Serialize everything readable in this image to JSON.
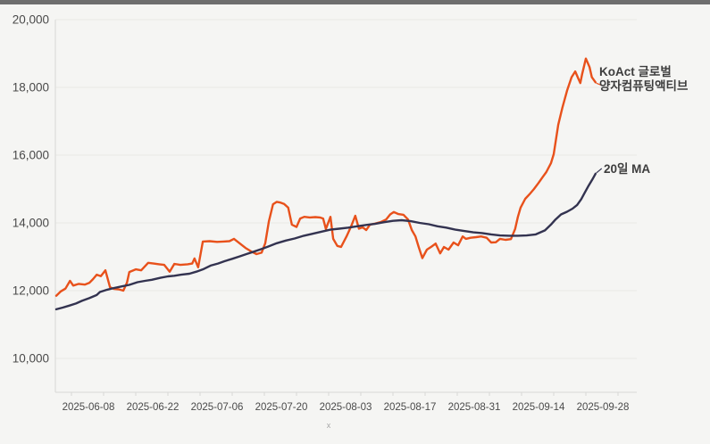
{
  "page": {
    "background_color": "#f5f5f3",
    "topbar_color": "#6e6e6e"
  },
  "chart_data": {
    "type": "line",
    "title": "",
    "xlabel": "x",
    "ylabel": "",
    "legend_position": "right-of-line-endpoints",
    "grid": "horizontal",
    "x_axis": {
      "tick_labels": [
        "2025-06-08",
        "2025-06-22",
        "2025-07-06",
        "2025-07-20",
        "2025-08-03",
        "2025-08-17",
        "2025-08-31",
        "2025-09-14",
        "2025-09-28"
      ],
      "tick_day_offsets": [
        7,
        21,
        35,
        49,
        63,
        77,
        91,
        105,
        119
      ],
      "minor_tick_every_days": 7,
      "start_date": "2025-06-01"
    },
    "y_axis": {
      "tick_values": [
        10000,
        12000,
        14000,
        16000,
        18000,
        20000
      ],
      "tick_labels": [
        "10,000",
        "12,000",
        "14,000",
        "16,000",
        "18,000",
        "20,000"
      ],
      "range": [
        9000,
        20500
      ]
    },
    "series": [
      {
        "name": "KoAct 글로벌 양자컴퓨팅액티브",
        "label_lines": [
          "KoAct 글로벌",
          "양자컴퓨팅액티브"
        ],
        "color": "#e8511b",
        "line_width": 2.4,
        "points": [
          [
            0,
            11850
          ],
          [
            1,
            11980
          ],
          [
            2,
            12060
          ],
          [
            3,
            12290
          ],
          [
            3.7,
            12150
          ],
          [
            4.9,
            12200
          ],
          [
            6.2,
            12180
          ],
          [
            7.2,
            12230
          ],
          [
            8,
            12340
          ],
          [
            8.8,
            12470
          ],
          [
            9.7,
            12430
          ],
          [
            10.7,
            12600
          ],
          [
            11.7,
            12100
          ],
          [
            12.6,
            12050
          ],
          [
            13.6,
            12040
          ],
          [
            14.6,
            12000
          ],
          [
            15.4,
            12240
          ],
          [
            15.9,
            12550
          ],
          [
            17.3,
            12630
          ],
          [
            18.5,
            12600
          ],
          [
            20,
            12820
          ],
          [
            21.2,
            12800
          ],
          [
            22.4,
            12780
          ],
          [
            23.5,
            12760
          ],
          [
            24.7,
            12560
          ],
          [
            25.7,
            12790
          ],
          [
            27,
            12760
          ],
          [
            28.6,
            12780
          ],
          [
            29.6,
            12800
          ],
          [
            30.1,
            12950
          ],
          [
            30.9,
            12690
          ],
          [
            31.9,
            13450
          ],
          [
            33.4,
            13460
          ],
          [
            35,
            13440
          ],
          [
            36.4,
            13450
          ],
          [
            37.7,
            13460
          ],
          [
            38.7,
            13530
          ],
          [
            39.9,
            13400
          ],
          [
            41.2,
            13260
          ],
          [
            42.4,
            13160
          ],
          [
            43.6,
            13080
          ],
          [
            44.7,
            13120
          ],
          [
            45.5,
            13400
          ],
          [
            46.3,
            14050
          ],
          [
            47.2,
            14550
          ],
          [
            48,
            14620
          ],
          [
            48.8,
            14600
          ],
          [
            49.6,
            14560
          ],
          [
            50.5,
            14450
          ],
          [
            51.3,
            13950
          ],
          [
            52.3,
            13880
          ],
          [
            53.1,
            14130
          ],
          [
            54,
            14180
          ],
          [
            55.2,
            14160
          ],
          [
            56.4,
            14170
          ],
          [
            57.4,
            14160
          ],
          [
            58.1,
            14130
          ],
          [
            58.7,
            13820
          ],
          [
            59.7,
            14180
          ],
          [
            60.3,
            13530
          ],
          [
            61.2,
            13320
          ],
          [
            62,
            13290
          ],
          [
            63.2,
            13600
          ],
          [
            64.2,
            13900
          ],
          [
            65.1,
            14210
          ],
          [
            65.9,
            13830
          ],
          [
            66.7,
            13870
          ],
          [
            67.5,
            13790
          ],
          [
            68.3,
            13950
          ],
          [
            69.4,
            13980
          ],
          [
            70.6,
            14020
          ],
          [
            71.8,
            14100
          ],
          [
            72.7,
            14250
          ],
          [
            73.5,
            14320
          ],
          [
            74.5,
            14260
          ],
          [
            75.6,
            14240
          ],
          [
            76.6,
            14100
          ],
          [
            77.4,
            13790
          ],
          [
            78.2,
            13600
          ],
          [
            78.9,
            13290
          ],
          [
            79.7,
            12960
          ],
          [
            80.7,
            13210
          ],
          [
            81.7,
            13300
          ],
          [
            82.6,
            13390
          ],
          [
            83.6,
            13100
          ],
          [
            84.4,
            13290
          ],
          [
            85.4,
            13210
          ],
          [
            86.5,
            13420
          ],
          [
            87.5,
            13340
          ],
          [
            88.5,
            13600
          ],
          [
            89.2,
            13530
          ],
          [
            90.2,
            13560
          ],
          [
            91.4,
            13580
          ],
          [
            92.5,
            13600
          ],
          [
            93.7,
            13560
          ],
          [
            94.7,
            13420
          ],
          [
            95.7,
            13430
          ],
          [
            96.6,
            13530
          ],
          [
            97.8,
            13500
          ],
          [
            99,
            13520
          ],
          [
            99.9,
            13820
          ],
          [
            100.5,
            14180
          ],
          [
            101.1,
            14450
          ],
          [
            102.1,
            14710
          ],
          [
            103,
            14840
          ],
          [
            104,
            15000
          ],
          [
            105,
            15180
          ],
          [
            106,
            15370
          ],
          [
            106.7,
            15500
          ],
          [
            107.7,
            15760
          ],
          [
            108.3,
            16030
          ],
          [
            109.3,
            16900
          ],
          [
            110.2,
            17400
          ],
          [
            111.2,
            17900
          ],
          [
            112.2,
            18300
          ],
          [
            113,
            18470
          ],
          [
            113.7,
            18250
          ],
          [
            114.1,
            18130
          ],
          [
            114.5,
            18400
          ],
          [
            115.3,
            18850
          ],
          [
            116.1,
            18600
          ],
          [
            116.6,
            18300
          ],
          [
            117.4,
            18150
          ]
        ]
      },
      {
        "name": "20일 MA",
        "label_lines": [
          "20일 MA"
        ],
        "color": "#333350",
        "line_width": 2.4,
        "points": [
          [
            0,
            11450
          ],
          [
            1.4,
            11500
          ],
          [
            2.9,
            11560
          ],
          [
            4.3,
            11620
          ],
          [
            5.6,
            11700
          ],
          [
            7.2,
            11780
          ],
          [
            8.8,
            11870
          ],
          [
            9.5,
            11960
          ],
          [
            11.1,
            12030
          ],
          [
            12.6,
            12080
          ],
          [
            14.4,
            12130
          ],
          [
            15.9,
            12170
          ],
          [
            17.7,
            12250
          ],
          [
            19.3,
            12290
          ],
          [
            20.8,
            12320
          ],
          [
            22.7,
            12380
          ],
          [
            24.3,
            12420
          ],
          [
            25.7,
            12440
          ],
          [
            27.2,
            12470
          ],
          [
            29,
            12500
          ],
          [
            30.5,
            12560
          ],
          [
            32.1,
            12640
          ],
          [
            33.6,
            12740
          ],
          [
            35.2,
            12800
          ],
          [
            36.7,
            12870
          ],
          [
            38.3,
            12940
          ],
          [
            39.9,
            13010
          ],
          [
            41.4,
            13080
          ],
          [
            43,
            13150
          ],
          [
            44.5,
            13220
          ],
          [
            46.1,
            13300
          ],
          [
            48,
            13400
          ],
          [
            50,
            13480
          ],
          [
            51.9,
            13540
          ],
          [
            53.9,
            13620
          ],
          [
            55.8,
            13680
          ],
          [
            57.7,
            13740
          ],
          [
            59.7,
            13800
          ],
          [
            61.6,
            13830
          ],
          [
            63.6,
            13860
          ],
          [
            65.5,
            13900
          ],
          [
            67.5,
            13940
          ],
          [
            69.4,
            13970
          ],
          [
            71.4,
            14020
          ],
          [
            73.3,
            14060
          ],
          [
            75.2,
            14080
          ],
          [
            77.2,
            14050
          ],
          [
            79.1,
            14000
          ],
          [
            81.1,
            13960
          ],
          [
            83,
            13900
          ],
          [
            84.9,
            13860
          ],
          [
            86.9,
            13800
          ],
          [
            88.8,
            13760
          ],
          [
            90.8,
            13720
          ],
          [
            92.7,
            13700
          ],
          [
            94.7,
            13660
          ],
          [
            96.6,
            13630
          ],
          [
            98.6,
            13620
          ],
          [
            100.5,
            13620
          ],
          [
            102.4,
            13630
          ],
          [
            104.4,
            13660
          ],
          [
            106.4,
            13780
          ],
          [
            107.7,
            13950
          ],
          [
            108.7,
            14100
          ],
          [
            109.9,
            14250
          ],
          [
            111.2,
            14330
          ],
          [
            112.4,
            14420
          ],
          [
            113.4,
            14530
          ],
          [
            114.3,
            14700
          ],
          [
            115.1,
            14900
          ],
          [
            115.9,
            15100
          ],
          [
            116.7,
            15280
          ],
          [
            117.4,
            15450
          ]
        ]
      }
    ],
    "colors": {
      "grid": "#e9e9e6",
      "axis": "#d8d8d6",
      "tick_text": "#4a4a4a",
      "axis_note": "#a6a6a6"
    }
  }
}
